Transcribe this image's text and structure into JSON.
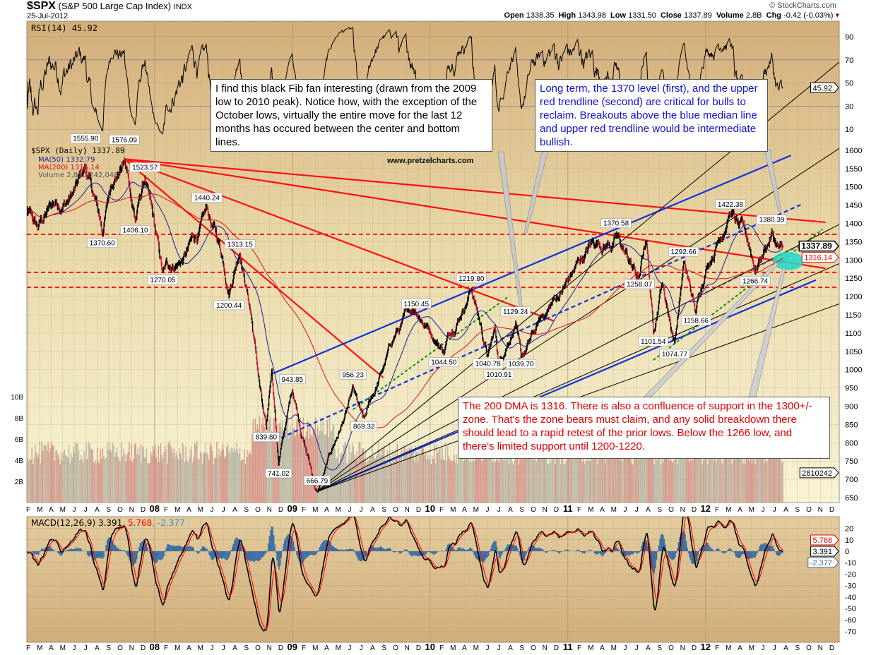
{
  "header": {
    "symbol": "$SPX",
    "name": "(S&P 500 Large Cap Index)",
    "exchange": "INDX",
    "date": "25-Jul-2012",
    "copyright": "© StockCharts.com",
    "open_label": "Open",
    "open": "1338.35",
    "high_label": "High",
    "high": "1343.98",
    "low_label": "Low",
    "low": "1331.50",
    "close_label": "Close",
    "close": "1337.89",
    "volume_label": "Volume",
    "volume": "2.8B",
    "chg_label": "Chg",
    "chg": "-0.42 (-0.03%)"
  },
  "watermark": "www.pretzelcharts.com",
  "legend": {
    "rsi": "RSI(14) 45.92",
    "price": "$SPX (Daily) 1337.89",
    "ma50": "MA(50) 1332.79",
    "ma200": "MA(200) 1316.14",
    "volume": "Volume 2,810,242,048",
    "macd_main": "MACD(12,26,9) 3.391",
    "macd_signal": ", 5.768",
    "macd_hist": ", -2.377"
  },
  "axis_tags": {
    "rsi": "45.92",
    "close": "1337.89",
    "ma200": "1316.14",
    "volume": "2810242",
    "macd": "3.391",
    "signal": "5.768",
    "hist": "-2.377"
  },
  "notes": {
    "fib_fan": "I find this black Fib fan interesting (drawn from the 2009 low to 2010 peak).  Notice how, with the exception of the October lows, virtually the entire move for the last 12 months has occured between the center and bottom lines.",
    "long_term": "Long term, the 1370 level (first), and the upper red trendline (second) are critical for bulls to reclaim.  Breakouts above the blue median line and upper red trendline would be intermediate bullish.",
    "dma": "The 200 DMA is 1316.  There is also a confluence of support in the 1300+/- zone.  That's the zone bears must claim, and any solid breakdown there should lead to a rapid retest of the prior lows.  Below the 1266 low, and there's limited support until 1200-1220."
  },
  "colors": {
    "price": "#000000",
    "down_bar": "#cc1030",
    "ma50": "#1a1a9a",
    "ma200": "#e01010",
    "trend_red": "#ff1010",
    "trend_blue": "#1030e0",
    "fan": "#000000",
    "green_dotted": "#109010",
    "cyan_zone": "#20d8c8",
    "macd": "#000000",
    "signal": "#ff0000",
    "hist": "#3a6ea5",
    "vol_up": "#b0b0a0",
    "vol_down": "#d08a80"
  },
  "chart_data": {
    "type": "line",
    "x_months": [
      "F",
      "M",
      "A",
      "M",
      "J",
      "J",
      "A",
      "S",
      "O",
      "N",
      "D",
      "08",
      "F",
      "M",
      "A",
      "M",
      "J",
      "J",
      "A",
      "S",
      "O",
      "N",
      "D",
      "09",
      "F",
      "M",
      "A",
      "M",
      "J",
      "J",
      "A",
      "S",
      "O",
      "N",
      "D",
      "10",
      "F",
      "M",
      "A",
      "M",
      "J",
      "J",
      "A",
      "S",
      "O",
      "N",
      "D",
      "11",
      "F",
      "M",
      "A",
      "M",
      "J",
      "J",
      "A",
      "S",
      "O",
      "N",
      "D",
      "12",
      "F",
      "M",
      "A",
      "M",
      "J",
      "J",
      "A",
      "S",
      "O",
      "N",
      "D"
    ],
    "x_range": [
      "2007-02",
      "2012-12"
    ],
    "price": {
      "ylim": [
        630,
        1620
      ],
      "ticks": [
        650,
        700,
        750,
        800,
        850,
        900,
        950,
        1000,
        1050,
        1100,
        1150,
        1200,
        1250,
        1300,
        1350,
        1400,
        1450,
        1500,
        1550,
        1600
      ],
      "path_points": [
        [
          2007.05,
          1440
        ],
        [
          2007.15,
          1385
        ],
        [
          2007.2,
          1420
        ],
        [
          2007.45,
          1530
        ],
        [
          2007.5,
          1555.9
        ],
        [
          2007.62,
          1370.6
        ],
        [
          2007.7,
          1500
        ],
        [
          2007.78,
          1576.09
        ],
        [
          2007.86,
          1406.1
        ],
        [
          2007.93,
          1523.57
        ],
        [
          2008.06,
          1270.05
        ],
        [
          2008.2,
          1300
        ],
        [
          2008.38,
          1440.24
        ],
        [
          2008.54,
          1200.44
        ],
        [
          2008.62,
          1313.15
        ],
        [
          2008.7,
          1150
        ],
        [
          2008.81,
          839.8
        ],
        [
          2008.85,
          1000
        ],
        [
          2008.9,
          741.02
        ],
        [
          2009.0,
          943.85
        ],
        [
          2009.18,
          666.79
        ],
        [
          2009.44,
          956.23
        ],
        [
          2009.52,
          869.32
        ],
        [
          2009.75,
          1100
        ],
        [
          2009.9,
          1150.45
        ],
        [
          2010.1,
          1044.5
        ],
        [
          2010.3,
          1219.8
        ],
        [
          2010.42,
          1040.78
        ],
        [
          2010.47,
          1120
        ],
        [
          2010.5,
          1010.91
        ],
        [
          2010.62,
          1129.24
        ],
        [
          2010.66,
          1039.7
        ],
        [
          2010.9,
          1200
        ],
        [
          2011.15,
          1340
        ],
        [
          2011.35,
          1370.58
        ],
        [
          2011.52,
          1258.07
        ],
        [
          2011.57,
          1350
        ],
        [
          2011.62,
          1101.54
        ],
        [
          2011.68,
          1230
        ],
        [
          2011.775,
          1074.77
        ],
        [
          2011.84,
          1292.66
        ],
        [
          2011.93,
          1158.66
        ],
        [
          2012.0,
          1270
        ],
        [
          2012.18,
          1422.38
        ],
        [
          2012.36,
          1266.74
        ],
        [
          2012.48,
          1380.39
        ],
        [
          2012.56,
          1337.89
        ]
      ],
      "labels": [
        {
          "date": 2007.5,
          "value": "1555.90",
          "kind": "peak"
        },
        {
          "date": 2007.62,
          "value": "1370.60",
          "kind": "trough"
        },
        {
          "date": 2007.78,
          "value": "1576.09",
          "kind": "peak"
        },
        {
          "date": 2007.86,
          "value": "1406.10",
          "kind": "trough"
        },
        {
          "date": 2007.93,
          "value": "1523.57",
          "kind": "peak"
        },
        {
          "date": 2008.06,
          "value": "1270.05",
          "kind": "trough"
        },
        {
          "date": 2008.38,
          "value": "1440.24",
          "kind": "peak"
        },
        {
          "date": 2008.54,
          "value": "1200.44",
          "kind": "trough"
        },
        {
          "date": 2008.62,
          "value": "1313.15",
          "kind": "peak"
        },
        {
          "date": 2008.81,
          "value": "839.80",
          "kind": "trough"
        },
        {
          "date": 2008.9,
          "value": "741.02",
          "kind": "trough"
        },
        {
          "date": 2009.0,
          "value": "943.85",
          "kind": "peak"
        },
        {
          "date": 2009.18,
          "value": "666.79",
          "kind": "trough"
        },
        {
          "date": 2009.44,
          "value": "956.23",
          "kind": "peak"
        },
        {
          "date": 2009.52,
          "value": "869.32",
          "kind": "trough"
        },
        {
          "date": 2009.9,
          "value": "1150.45",
          "kind": "peak"
        },
        {
          "date": 2010.1,
          "value": "1044.50",
          "kind": "trough"
        },
        {
          "date": 2010.3,
          "value": "1219.80",
          "kind": "peak"
        },
        {
          "date": 2010.42,
          "value": "1040.78",
          "kind": "trough"
        },
        {
          "date": 2010.5,
          "value": "1010.91",
          "kind": "trough"
        },
        {
          "date": 2010.62,
          "value": "1129.24",
          "kind": "peak"
        },
        {
          "date": 2010.66,
          "value": "1039.70",
          "kind": "trough"
        },
        {
          "date": 2011.35,
          "value": "1370.58",
          "kind": "peak"
        },
        {
          "date": 2011.52,
          "value": "1258.07",
          "kind": "trough"
        },
        {
          "date": 2011.62,
          "value": "1101.54",
          "kind": "trough"
        },
        {
          "date": 2011.775,
          "value": "1074.77",
          "kind": "trough"
        },
        {
          "date": 2011.84,
          "value": "1292.66",
          "kind": "peak"
        },
        {
          "date": 2011.93,
          "value": "1158.66",
          "kind": "trough"
        },
        {
          "date": 2012.18,
          "value": "1422.38",
          "kind": "peak"
        },
        {
          "date": 2012.36,
          "value": "1266.74",
          "kind": "trough"
        },
        {
          "date": 2012.48,
          "value": "1380.39",
          "kind": "peak"
        }
      ],
      "last": {
        "close": 1337.89,
        "ma50": 1332.79,
        "ma200": 1316.14
      }
    },
    "horizontal_levels": [
      1370,
      1266,
      1225
    ],
    "trendlines": [
      {
        "color": "trend_red",
        "style": "solid",
        "from": [
          2007.78,
          1576.09
        ],
        "to": [
          2012.87,
          1277
        ]
      },
      {
        "color": "trend_red",
        "style": "solid",
        "from": [
          2007.78,
          1576.09
        ],
        "to": [
          2012.87,
          1403
        ]
      },
      {
        "color": "trend_red",
        "style": "solid",
        "from": [
          2007.78,
          1576.09
        ],
        "to": [
          2010.9,
          1133
        ]
      },
      {
        "color": "trend_red",
        "style": "solid",
        "from": [
          2007.78,
          1576.09
        ],
        "to": [
          2009.66,
          978
        ]
      },
      {
        "color": "trend_blue",
        "style": "solid",
        "from": [
          2008.85,
          988
        ],
        "to": [
          2012.62,
          1586
        ]
      },
      {
        "color": "trend_blue",
        "style": "solid",
        "from": [
          2009.18,
          666.79
        ],
        "to": [
          2012.8,
          1245
        ]
      },
      {
        "color": "trend_blue",
        "style": "dashed",
        "from": [
          2008.92,
          814
        ],
        "to": [
          2012.69,
          1451
        ]
      },
      {
        "color": "green_dotted",
        "style": "dotted",
        "from": [
          2009.44,
          891
        ],
        "to": [
          2010.57,
          1200
        ]
      },
      {
        "color": "green_dotted",
        "style": "dotted",
        "from": [
          2011.62,
          1026
        ],
        "to": [
          2012.85,
          1384
        ]
      },
      {
        "color": "fan",
        "style": "dashed-gray",
        "from": [
          2012.0,
          1210
        ],
        "to": [
          2012.77,
          1355
        ]
      },
      {
        "color": "fan",
        "style": "thin",
        "from": [
          2009.18,
          666.79
        ],
        "to": [
          2012.97,
          1841
        ]
      },
      {
        "color": "fan",
        "style": "thin",
        "from": [
          2009.18,
          666.79
        ],
        "to": [
          2012.97,
          1605
        ]
      },
      {
        "color": "fan",
        "style": "thin",
        "from": [
          2009.18,
          666.79
        ],
        "to": [
          2012.97,
          1397
        ]
      },
      {
        "color": "fan",
        "style": "thin",
        "from": [
          2009.18,
          666.79
        ],
        "to": [
          2012.97,
          1290
        ]
      },
      {
        "color": "fan",
        "style": "thin",
        "from": [
          2009.18,
          666.79
        ],
        "to": [
          2012.97,
          1180
        ]
      }
    ],
    "support_zone": {
      "date": 2012.6,
      "price": 1297
    },
    "rsi": {
      "ticks": [
        90,
        70,
        50,
        30,
        10
      ],
      "last": 45.92
    },
    "volume": {
      "ticks": [
        "10B",
        "8B",
        "6B",
        "4B",
        "2B"
      ],
      "tick_values": [
        10,
        8,
        6,
        4,
        2
      ],
      "last": 2810242048
    },
    "macd": {
      "ticks": [
        20,
        10,
        0,
        -10,
        -20,
        -30,
        -40,
        -50,
        -60,
        -70
      ],
      "params": "12,26,9",
      "macd": 3.391,
      "signal": 5.768,
      "hist": -2.377
    }
  }
}
